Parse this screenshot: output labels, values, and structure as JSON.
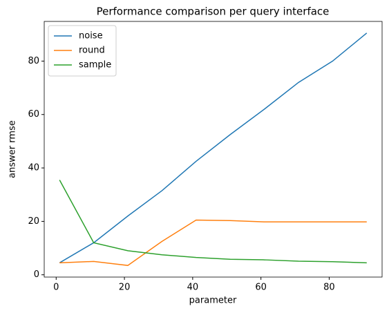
{
  "chart_data": {
    "type": "line",
    "title": "Performance comparison per query interface",
    "xlabel": "parameter",
    "ylabel": "answer rmse",
    "x": [
      1,
      11,
      21,
      31,
      41,
      51,
      61,
      71,
      81,
      91
    ],
    "series": [
      {
        "name": "noise",
        "color": "#1f77b4",
        "values": [
          4.5,
          12,
          22,
          31.5,
          42.5,
          52.5,
          62,
          72,
          80,
          90.5
        ]
      },
      {
        "name": "round",
        "color": "#ff7f0e",
        "values": [
          4.5,
          5,
          3.5,
          12.5,
          20.5,
          20.3,
          19.8,
          19.8,
          19.8,
          19.8
        ]
      },
      {
        "name": "sample",
        "color": "#2ca02c",
        "values": [
          35.5,
          12,
          9,
          7.5,
          6.5,
          5.8,
          5.6,
          5.1,
          4.9,
          4.5
        ]
      }
    ],
    "xlim": [
      -3.5,
      95.5
    ],
    "xticks": [
      0,
      20,
      40,
      60,
      80
    ],
    "ylim": [
      -0.85,
      94.85
    ],
    "yticks": [
      0,
      20,
      40,
      60,
      80
    ],
    "legend": "upper left"
  }
}
